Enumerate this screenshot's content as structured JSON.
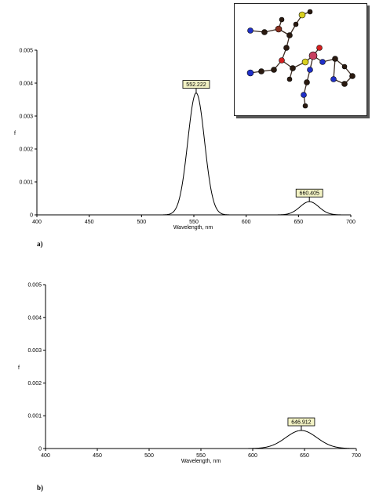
{
  "chart_data": [
    {
      "type": "line",
      "panel_label": "a)",
      "xlabel": "Wavelength, nm",
      "ylabel": "f",
      "xlim": [
        400,
        700
      ],
      "ylim": [
        0,
        0.005
      ],
      "x_ticks": [
        "400",
        "450",
        "500",
        "550",
        "600",
        "650",
        "700"
      ],
      "y_ticks": [
        "0",
        "0.001",
        "0.002",
        "0.003",
        "0.004",
        "0.005"
      ],
      "peaks": [
        {
          "x": 552.222,
          "y": 0.0037,
          "label": "552.222"
        },
        {
          "x": 660.405,
          "y": 0.0004,
          "label": "660.405"
        }
      ],
      "grid": false
    },
    {
      "type": "line",
      "panel_label": "b)",
      "xlabel": "Wavelength, nm",
      "ylabel": "f",
      "xlim": [
        400,
        700
      ],
      "ylim": [
        0,
        0.005
      ],
      "x_ticks": [
        "400",
        "450",
        "500",
        "550",
        "600",
        "650",
        "700"
      ],
      "y_ticks": [
        "0",
        "0.001",
        "0.002",
        "0.003",
        "0.004",
        "0.005"
      ],
      "peaks": [
        {
          "x": 646.912,
          "y": 0.00055,
          "label": "646.912"
        }
      ],
      "grid": false
    }
  ],
  "inset": {
    "description_icon": "molecule-structure-icon"
  },
  "colors": {
    "label_fill": "#f2f2c4",
    "carbon": "#2a1a10",
    "oxygen": "#d42020",
    "nitrogen": "#2030c8",
    "sulfur": "#d8d020"
  }
}
